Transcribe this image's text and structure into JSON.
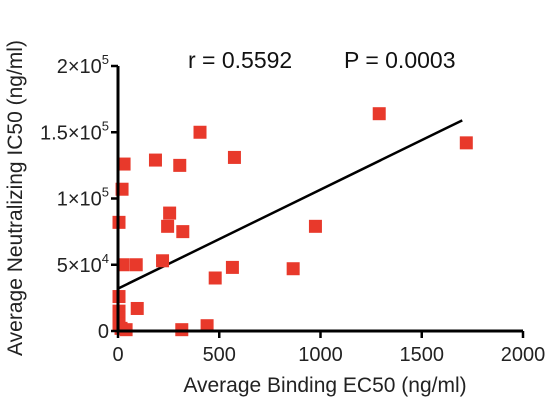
{
  "chart_data": {
    "type": "scatter",
    "title": "",
    "annotation": {
      "r_text": "r = 0.5592",
      "p_text": "P = 0.0003"
    },
    "xlabel": "Average Binding EC50 (ng/ml)",
    "ylabel": "Average Neutralizing IC50 (ng/ml)",
    "xlim": [
      0,
      2000
    ],
    "ylim": [
      0,
      200000
    ],
    "x_ticks": [
      {
        "value": 0,
        "label": "0"
      },
      {
        "value": 500,
        "label": "500"
      },
      {
        "value": 1000,
        "label": "1000"
      },
      {
        "value": 1500,
        "label": "1500"
      },
      {
        "value": 2000,
        "label": "2000"
      }
    ],
    "y_ticks": [
      {
        "value": 0,
        "label": "0",
        "mantissa": "0",
        "exponent": ""
      },
      {
        "value": 50000,
        "label": "5×10^4",
        "mantissa": "5×10",
        "exponent": "4"
      },
      {
        "value": 100000,
        "label": "1×10^5",
        "mantissa": "1×10",
        "exponent": "5"
      },
      {
        "value": 150000,
        "label": "1.5×10^5",
        "mantissa": "1.5×10",
        "exponent": "5"
      },
      {
        "value": 200000,
        "label": "2×10^5",
        "mantissa": "2×10",
        "exponent": "5"
      }
    ],
    "grid": false,
    "marker_color": "#e8392b",
    "line_color": "#000000",
    "points": [
      {
        "x": 5,
        "y": 82000
      },
      {
        "x": 20,
        "y": 107000
      },
      {
        "x": 30,
        "y": 126000
      },
      {
        "x": 25,
        "y": 50000
      },
      {
        "x": 90,
        "y": 50000
      },
      {
        "x": 5,
        "y": 26000
      },
      {
        "x": 5,
        "y": 15000
      },
      {
        "x": 5,
        "y": 10000
      },
      {
        "x": 5,
        "y": 5000
      },
      {
        "x": 15,
        "y": 2000
      },
      {
        "x": 40,
        "y": 1000
      },
      {
        "x": 95,
        "y": 17000
      },
      {
        "x": 185,
        "y": 129000
      },
      {
        "x": 220,
        "y": 53000
      },
      {
        "x": 245,
        "y": 79000
      },
      {
        "x": 255,
        "y": 89000
      },
      {
        "x": 305,
        "y": 125000
      },
      {
        "x": 320,
        "y": 75000
      },
      {
        "x": 315,
        "y": 1000
      },
      {
        "x": 405,
        "y": 150000
      },
      {
        "x": 440,
        "y": 4000
      },
      {
        "x": 480,
        "y": 40000
      },
      {
        "x": 565,
        "y": 48000
      },
      {
        "x": 575,
        "y": 131000
      },
      {
        "x": 865,
        "y": 47000
      },
      {
        "x": 975,
        "y": 79000
      },
      {
        "x": 1290,
        "y": 164000
      },
      {
        "x": 1720,
        "y": 142000
      }
    ],
    "fit_line": {
      "x": [
        0,
        1700
      ],
      "y": [
        32000,
        159000
      ]
    }
  }
}
